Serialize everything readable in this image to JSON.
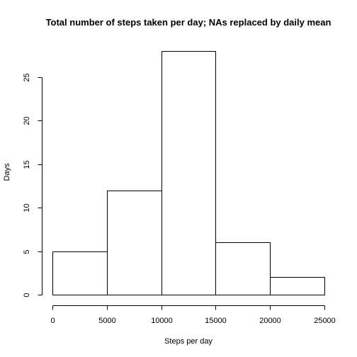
{
  "chart_data": {
    "type": "bar",
    "title": "Total number of steps taken per day; NAs replaced by daily mean",
    "xlabel": "Steps per day",
    "ylabel": "Days",
    "bins": [
      {
        "from": 0,
        "to": 5000,
        "count": 5
      },
      {
        "from": 5000,
        "to": 10000,
        "count": 12
      },
      {
        "from": 10000,
        "to": 15000,
        "count": 28
      },
      {
        "from": 15000,
        "to": 20000,
        "count": 6
      },
      {
        "from": 20000,
        "to": 25000,
        "count": 2
      }
    ],
    "xlim": [
      0,
      25000
    ],
    "ylim": [
      0,
      28
    ],
    "x_ticks": [
      0,
      5000,
      10000,
      15000,
      20000,
      25000
    ],
    "y_ticks": [
      0,
      5,
      10,
      15,
      20,
      25
    ],
    "grid": false,
    "legend": "none"
  }
}
